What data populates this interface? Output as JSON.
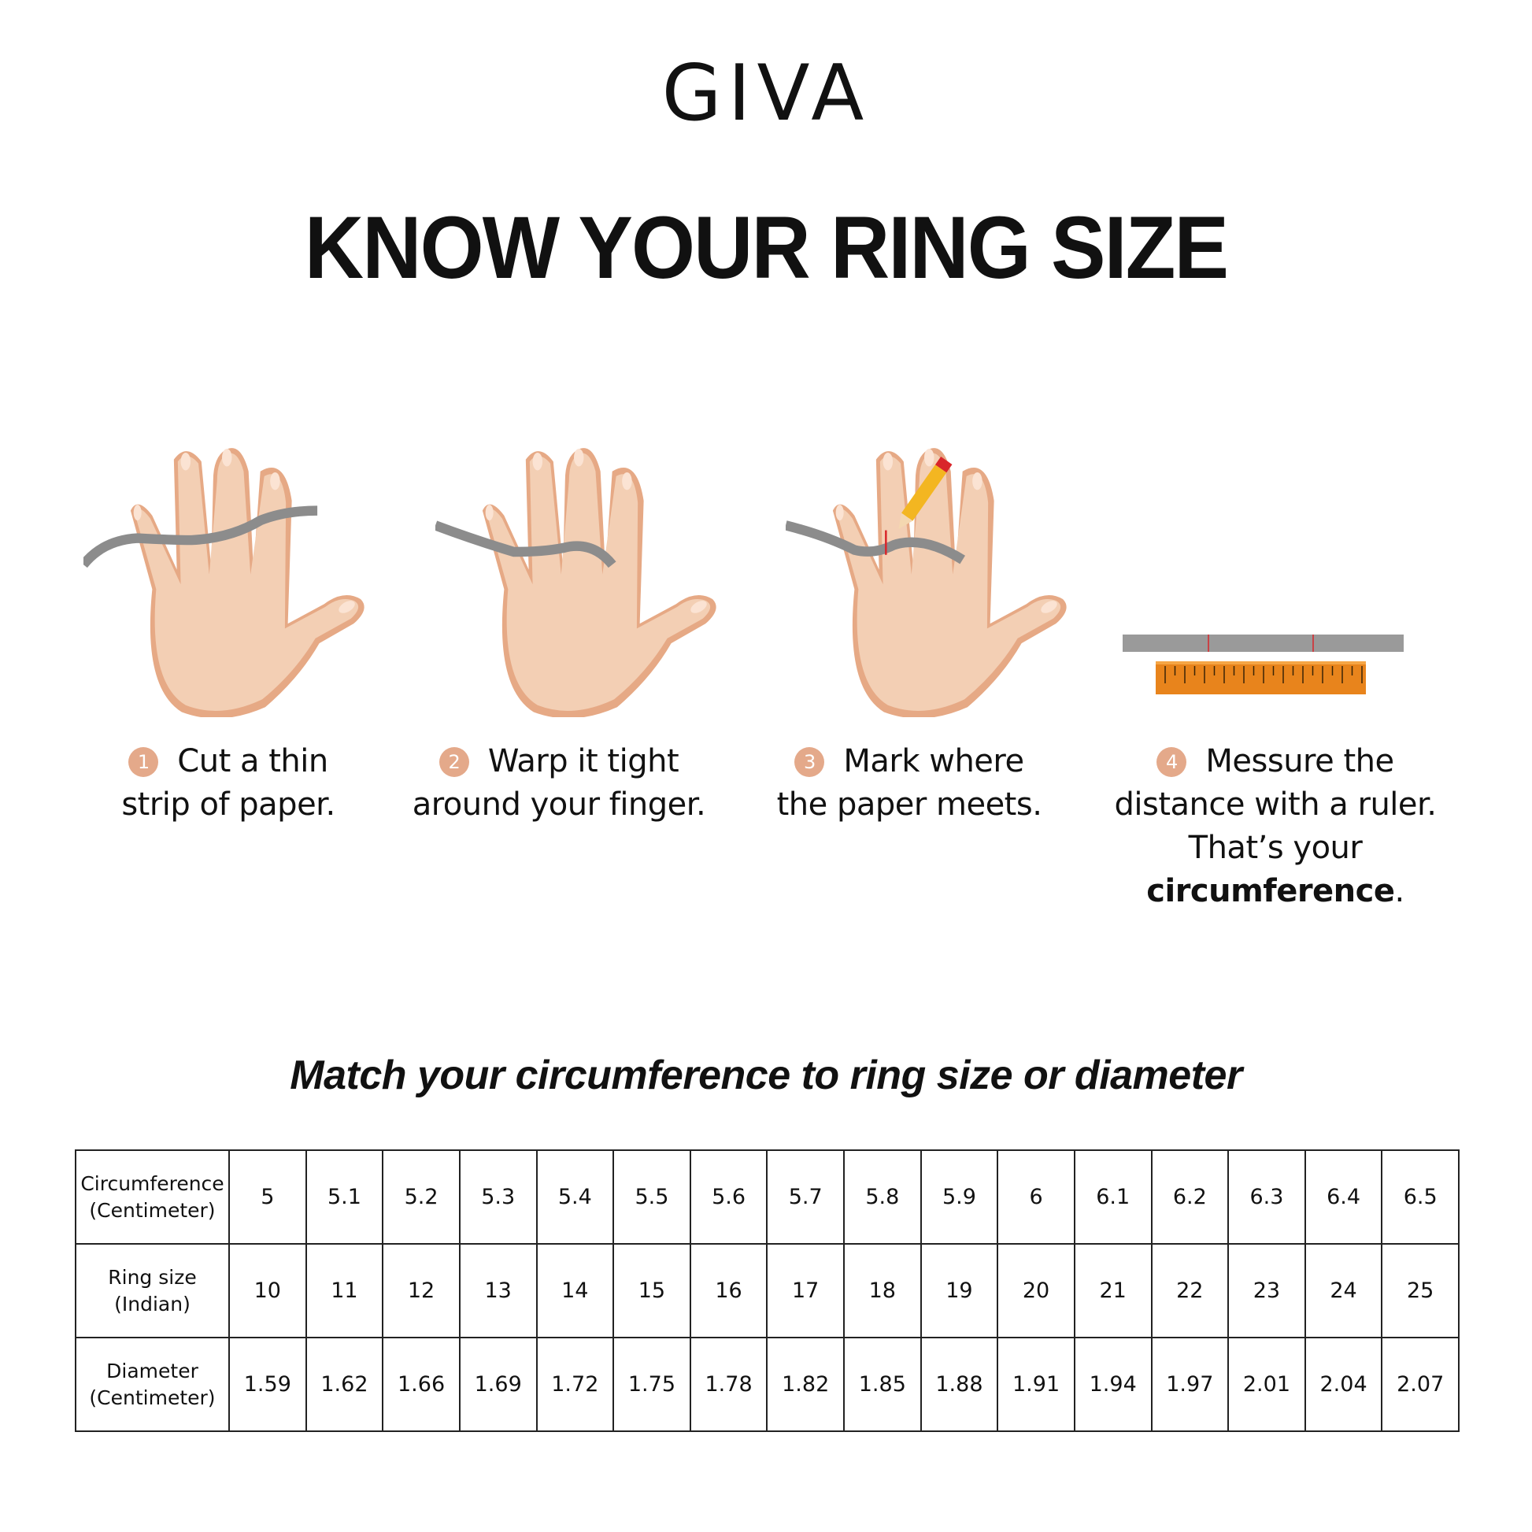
{
  "brand": {
    "logo": "GIVA"
  },
  "title": "KNOW YOUR RING SIZE",
  "steps": [
    {
      "number": "1",
      "line1": "Cut a thin",
      "line2": "strip of paper.",
      "illustration": "hand-with-paper-strip"
    },
    {
      "number": "2",
      "line1": "Warp it tight",
      "line2": "around your finger.",
      "illustration": "hand-wrapped-finger"
    },
    {
      "number": "3",
      "line1": "Mark where",
      "line2": "the paper meets.",
      "illustration": "hand-pencil-mark"
    },
    {
      "number": "4",
      "line1": "Messure the",
      "line2": "distance with a ruler.",
      "line3_prefix": "That’s your ",
      "line3_bold": "circumference",
      "line3_suffix": ".",
      "illustration": "paper-strip-and-ruler"
    }
  ],
  "colors": {
    "skin": "#f3cfb4",
    "skin_shadow": "#e6a985",
    "paper": "#8c8c8c",
    "ruler": "#e8841c",
    "step_badge": "#e4a98a",
    "mark": "#d9252a"
  },
  "subtitle": "Match your circumference to ring size or diameter",
  "table": {
    "rows": [
      {
        "label1": "Circumference",
        "label2": "(Centimeter)",
        "values": [
          "5",
          "5.1",
          "5.2",
          "5.3",
          "5.4",
          "5.5",
          "5.6",
          "5.7",
          "5.8",
          "5.9",
          "6",
          "6.1",
          "6.2",
          "6.3",
          "6.4",
          "6.5"
        ]
      },
      {
        "label1": "Ring size",
        "label2": "(Indian)",
        "values": [
          "10",
          "11",
          "12",
          "13",
          "14",
          "15",
          "16",
          "17",
          "18",
          "19",
          "20",
          "21",
          "22",
          "23",
          "24",
          "25"
        ]
      },
      {
        "label1": "Diameter",
        "label2": "(Centimeter)",
        "values": [
          "1.59",
          "1.62",
          "1.66",
          "1.69",
          "1.72",
          "1.75",
          "1.78",
          "1.82",
          "1.85",
          "1.88",
          "1.91",
          "1.94",
          "1.97",
          "2.01",
          "2.04",
          "2.07"
        ]
      }
    ]
  }
}
